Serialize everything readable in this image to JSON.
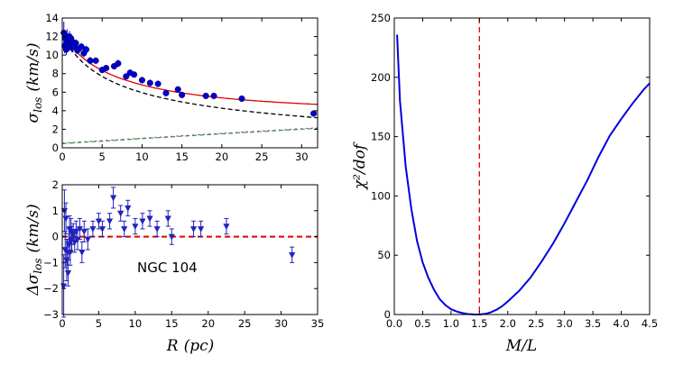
{
  "chart_data": [
    {
      "id": "top-left",
      "type": "scatter",
      "ylabel_main": "σ",
      "ylabel_sub": "los",
      "ylabel_units": "(km/s)",
      "xlim": [
        0,
        32
      ],
      "ylim": [
        0,
        14
      ],
      "xticks": [
        "0",
        "5",
        "10",
        "15",
        "20",
        "25",
        "30"
      ],
      "xtick_values": [
        0,
        5,
        10,
        15,
        20,
        25,
        30
      ],
      "yticks": [
        "0",
        "2",
        "4",
        "6",
        "8",
        "10",
        "12",
        "14"
      ],
      "ytick_values": [
        0,
        2,
        4,
        6,
        8,
        10,
        12,
        14
      ],
      "colors": {
        "points": "#0000cc",
        "model": "#e00000",
        "stars": "#000000",
        "bh_a": "#33aa33",
        "bh_b": "#aa33aa"
      },
      "points": {
        "x": [
          0.2,
          0.3,
          0.4,
          0.5,
          0.6,
          0.7,
          0.8,
          0.9,
          1.0,
          1.1,
          1.2,
          1.3,
          1.5,
          1.7,
          1.9,
          2.1,
          2.4,
          2.7,
          3.0,
          3.5,
          4.2,
          5.0,
          5.5,
          6.5,
          7.0,
          8.0,
          8.5,
          9.0,
          10.0,
          11.0,
          12.0,
          13.0,
          14.5,
          15.0,
          18.0,
          19.0,
          22.5,
          31.5
        ],
        "y": [
          12.4,
          11.0,
          11.8,
          10.6,
          12.0,
          11.2,
          10.9,
          12.0,
          11.5,
          11.8,
          10.8,
          11.4,
          11.0,
          11.3,
          10.5,
          10.7,
          10.9,
          10.2,
          10.6,
          9.4,
          9.4,
          8.4,
          8.6,
          8.8,
          9.1,
          7.7,
          8.1,
          7.9,
          7.3,
          7.0,
          6.9,
          5.9,
          6.3,
          5.7,
          5.6,
          5.6,
          5.3,
          3.7
        ],
        "err": [
          1.2,
          0.8,
          0.7,
          0.6,
          0.8,
          0.5,
          0.5,
          0.6,
          0.5,
          0.5,
          0.5,
          0.5,
          0.4,
          0.4,
          0.4,
          0.4,
          0.4,
          0.4,
          0.4,
          0.4,
          0.3,
          0.3,
          0.3,
          0.3,
          0.4,
          0.3,
          0.3,
          0.3,
          0.3,
          0.3,
          0.3,
          0.3,
          0.3,
          0.3,
          0.3,
          0.3,
          0.3,
          0.3
        ]
      }
    },
    {
      "id": "bottom-left",
      "type": "scatter",
      "ylabel_main": "Δσ",
      "ylabel_sub": "los",
      "ylabel_units": "(km/s)",
      "xlabel_main": "R",
      "xlabel_units": "(pc)",
      "annotation": "NGC 104",
      "xlim": [
        0,
        35
      ],
      "ylim": [
        -3,
        2
      ],
      "xticks": [
        "0",
        "5",
        "10",
        "15",
        "20",
        "25",
        "30",
        "35"
      ],
      "xtick_values": [
        0,
        5,
        10,
        15,
        20,
        25,
        30,
        35
      ],
      "yticks": [
        "−3",
        "−2",
        "−1",
        "0",
        "1",
        "2"
      ],
      "ytick_values": [
        -3,
        -2,
        -1,
        0,
        1,
        2
      ],
      "colors": {
        "points": "#2222bb",
        "zero_line": "#e00000"
      },
      "points": {
        "x": [
          0.2,
          0.3,
          0.4,
          0.5,
          0.6,
          0.7,
          0.8,
          0.9,
          1.0,
          1.1,
          1.2,
          1.3,
          1.5,
          1.7,
          1.9,
          2.1,
          2.4,
          2.7,
          3.0,
          3.5,
          4.2,
          5.0,
          5.5,
          6.5,
          7.0,
          8.0,
          8.5,
          9.0,
          10.0,
          11.0,
          12.0,
          13.0,
          14.5,
          15.0,
          18.0,
          19.0,
          22.5,
          31.5
        ],
        "y": [
          -1.9,
          1.0,
          -0.5,
          0.7,
          -0.9,
          -0.6,
          -1.4,
          -0.3,
          0.3,
          -0.6,
          0.2,
          -0.1,
          0.1,
          -0.2,
          0.2,
          -0.1,
          0.3,
          -0.6,
          0.2,
          -0.1,
          0.3,
          0.6,
          0.3,
          0.6,
          1.5,
          0.9,
          0.3,
          1.1,
          0.4,
          0.6,
          0.7,
          0.3,
          0.7,
          0.0,
          0.3,
          0.3,
          0.4,
          -0.7
        ],
        "err": [
          1.2,
          0.8,
          0.7,
          0.6,
          0.8,
          0.5,
          0.5,
          0.6,
          0.5,
          0.5,
          0.5,
          0.5,
          0.4,
          0.4,
          0.4,
          0.4,
          0.4,
          0.4,
          0.4,
          0.4,
          0.3,
          0.3,
          0.3,
          0.3,
          0.4,
          0.3,
          0.3,
          0.3,
          0.3,
          0.3,
          0.3,
          0.3,
          0.3,
          0.3,
          0.3,
          0.3,
          0.3,
          0.3
        ]
      }
    },
    {
      "id": "right",
      "type": "line",
      "ylabel_main": "χ²/dof",
      "xlabel_main": "M/L",
      "xlim": [
        0,
        4.5
      ],
      "ylim": [
        0,
        250
      ],
      "xticks": [
        "0.0",
        "0.5",
        "1.0",
        "1.5",
        "2.0",
        "2.5",
        "3.0",
        "3.5",
        "4.0",
        "4.5"
      ],
      "xtick_values": [
        0,
        0.5,
        1.0,
        1.5,
        2.0,
        2.5,
        3.0,
        3.5,
        4.0,
        4.5
      ],
      "yticks": [
        "0",
        "50",
        "100",
        "150",
        "200",
        "250"
      ],
      "ytick_values": [
        0,
        50,
        100,
        150,
        200,
        250
      ],
      "best_fit_ml": 1.5,
      "colors": {
        "curve": "#0000dd",
        "vline": "#e00000"
      },
      "series": [
        {
          "name": "chi2",
          "x": [
            0.05,
            0.1,
            0.2,
            0.3,
            0.4,
            0.5,
            0.6,
            0.7,
            0.8,
            0.9,
            1.0,
            1.1,
            1.2,
            1.3,
            1.4,
            1.5,
            1.6,
            1.7,
            1.8,
            1.9,
            2.0,
            2.2,
            2.4,
            2.6,
            2.8,
            3.0,
            3.2,
            3.4,
            3.6,
            3.8,
            4.0,
            4.2,
            4.4,
            4.5
          ],
          "y": [
            236,
            180,
            125,
            89,
            62,
            44,
            31,
            21,
            13,
            8,
            4.5,
            2.5,
            1.2,
            0.4,
            0.1,
            0,
            0.5,
            1.8,
            4,
            7,
            11,
            20,
            31,
            45,
            60,
            77,
            95,
            113,
            133,
            151,
            165,
            178,
            190,
            195
          ]
        }
      ]
    }
  ]
}
